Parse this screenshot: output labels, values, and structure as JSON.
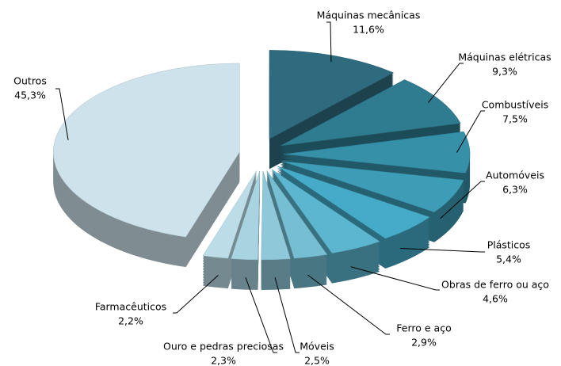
{
  "chart_data": {
    "type": "pie3d",
    "categories": [
      "Máquinas mecânicas",
      "Máquinas elétricas",
      "Combustíveis",
      "Automóveis",
      "Plásticos",
      "Obras de ferro ou aço",
      "Ferro e aço",
      "Móveis",
      "Ouro e pedras preciosas",
      "Farmacêuticos",
      "Outros"
    ],
    "values": [
      11.6,
      9.3,
      7.5,
      6.3,
      5.4,
      4.6,
      2.9,
      2.5,
      2.3,
      2.2,
      45.3
    ],
    "value_labels": [
      "11,6%",
      "9,3%",
      "7,5%",
      "6,3%",
      "5,4%",
      "4,6%",
      "2,9%",
      "2,5%",
      "2,3%",
      "2,2%",
      "45,3%"
    ],
    "colors": [
      "#2e6b7e",
      "#2f7b90",
      "#3590a8",
      "#3d9cb6",
      "#45abc8",
      "#5cb6cf",
      "#76bfd3",
      "#8fc8d9",
      "#a8d4e1",
      "#bcdde8",
      "#cde2ea"
    ]
  }
}
